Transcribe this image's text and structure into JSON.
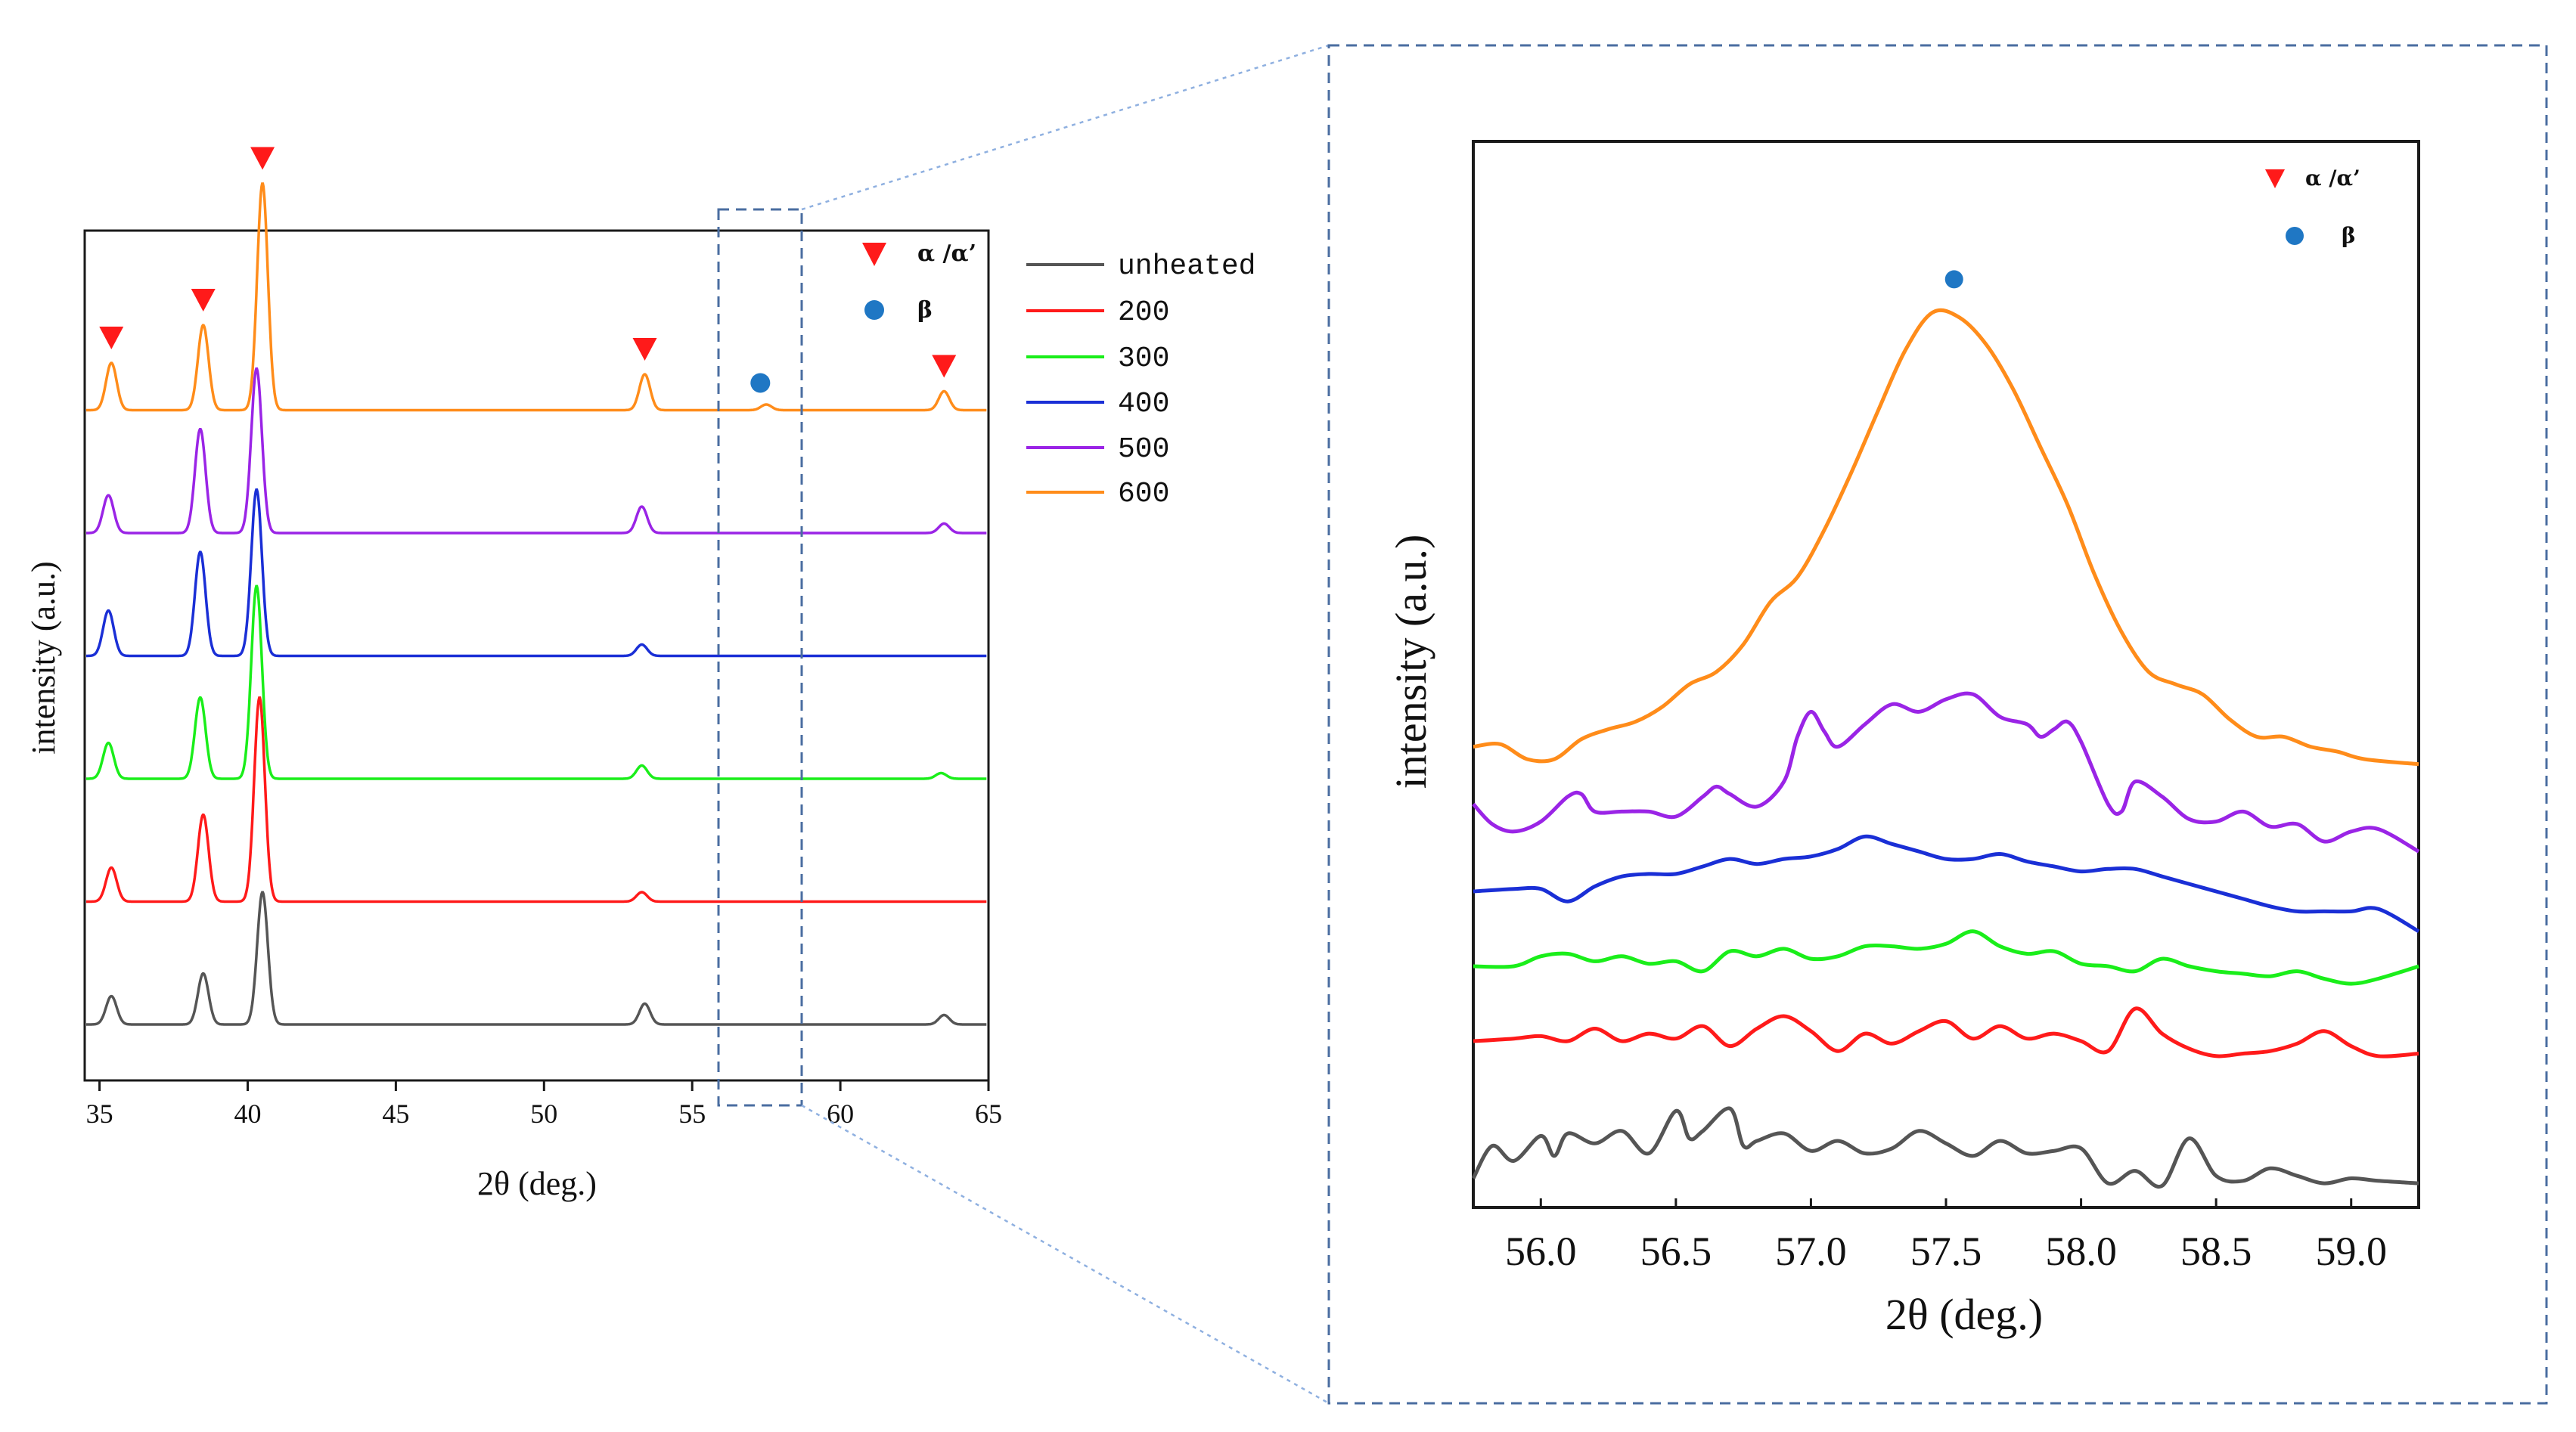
{
  "chart_data": [
    {
      "id": "overview",
      "type": "line",
      "xlabel": "2θ (deg.)",
      "ylabel": "intensity (a.u.)",
      "xlim": [
        34.5,
        65
      ],
      "xticks": [
        35,
        40,
        45,
        50,
        55,
        60,
        65
      ],
      "tick_labels": [
        "35",
        "40",
        "45",
        "50",
        "55",
        "60",
        "65"
      ],
      "stack_offset": 0.65,
      "peak_width": 0.18,
      "series": [
        {
          "name": "unheated",
          "color": "#555555",
          "peaks": [
            [
              35.4,
              0.15
            ],
            [
              38.5,
              0.27
            ],
            [
              40.5,
              0.7
            ],
            [
              53.4,
              0.11
            ],
            [
              63.5,
              0.05
            ]
          ]
        },
        {
          "name": "200",
          "color": "#ff1a1a",
          "peaks": [
            [
              35.4,
              0.18
            ],
            [
              38.5,
              0.46
            ],
            [
              40.4,
              1.08
            ],
            [
              53.3,
              0.05
            ]
          ]
        },
        {
          "name": "300",
          "color": "#1aee1a",
          "peaks": [
            [
              35.3,
              0.19
            ],
            [
              38.4,
              0.43
            ],
            [
              40.3,
              1.02
            ],
            [
              53.3,
              0.07
            ],
            [
              63.4,
              0.03
            ]
          ]
        },
        {
          "name": "400",
          "color": "#1a2fd6",
          "peaks": [
            [
              35.3,
              0.24
            ],
            [
              38.4,
              0.55
            ],
            [
              40.3,
              0.88
            ],
            [
              53.3,
              0.06
            ]
          ]
        },
        {
          "name": "500",
          "color": "#9a24e6",
          "peaks": [
            [
              35.3,
              0.2
            ],
            [
              38.4,
              0.55
            ],
            [
              40.3,
              0.87
            ],
            [
              53.3,
              0.14
            ],
            [
              63.5,
              0.05
            ]
          ]
        },
        {
          "name": "600",
          "color": "#ff8c1a",
          "peaks": [
            [
              35.4,
              0.25
            ],
            [
              38.5,
              0.45
            ],
            [
              40.5,
              1.2
            ],
            [
              53.4,
              0.19
            ],
            [
              57.5,
              0.03
            ],
            [
              63.5,
              0.1
            ]
          ]
        }
      ],
      "markers": [
        {
          "symbol": "triangle",
          "x": 35.4,
          "color": "#ff1a1a"
        },
        {
          "symbol": "triangle",
          "x": 38.5,
          "color": "#ff1a1a"
        },
        {
          "symbol": "triangle",
          "x": 40.5,
          "color": "#ff1a1a"
        },
        {
          "symbol": "triangle",
          "x": 53.4,
          "color": "#ff1a1a"
        },
        {
          "symbol": "circle",
          "x": 57.3,
          "color": "#1f77c4"
        },
        {
          "symbol": "triangle",
          "x": 63.5,
          "color": "#ff1a1a"
        }
      ],
      "zoom_window": [
        56,
        58.5
      ]
    },
    {
      "id": "zoom",
      "type": "line",
      "xlabel": "2θ (deg.)",
      "ylabel": "intensity (a.u.)",
      "xlim": [
        55.75,
        59.25
      ],
      "xticks": [
        56.0,
        56.5,
        57.0,
        57.5,
        58.0,
        58.5,
        59.0
      ],
      "tick_labels": [
        "56.0",
        "56.5",
        "57.0",
        "57.5",
        "58.0",
        "58.5",
        "59.0"
      ],
      "series": [
        {
          "name": "unheated",
          "color": "#555555",
          "x": [
            55.75,
            55.82,
            55.9,
            56.0,
            56.05,
            56.1,
            56.2,
            56.3,
            56.4,
            56.5,
            56.55,
            56.6,
            56.7,
            56.75,
            56.8,
            56.9,
            57.0,
            57.1,
            57.2,
            57.3,
            57.4,
            57.5,
            57.6,
            57.7,
            57.8,
            57.9,
            58.0,
            58.1,
            58.2,
            58.3,
            58.4,
            58.5,
            58.6,
            58.7,
            58.8,
            58.9,
            59.0,
            59.1,
            59.25
          ],
          "y": [
            0.5,
            1.8,
            1.2,
            2.2,
            1.4,
            2.3,
            1.9,
            2.4,
            1.5,
            3.2,
            2.1,
            2.4,
            3.3,
            1.8,
            2.0,
            2.3,
            1.6,
            2.0,
            1.5,
            1.7,
            2.4,
            1.9,
            1.4,
            2.0,
            1.5,
            1.6,
            1.7,
            0.3,
            0.8,
            0.2,
            2.1,
            0.6,
            0.4,
            0.9,
            0.6,
            0.3,
            0.5,
            0.4,
            0.3
          ]
        },
        {
          "name": "200",
          "color": "#ff1a1a",
          "x": [
            55.75,
            55.9,
            56.0,
            56.1,
            56.2,
            56.3,
            56.4,
            56.5,
            56.6,
            56.7,
            56.8,
            56.9,
            57.0,
            57.1,
            57.2,
            57.3,
            57.4,
            57.5,
            57.6,
            57.7,
            57.8,
            57.9,
            58.0,
            58.1,
            58.2,
            58.3,
            58.4,
            58.5,
            58.6,
            58.7,
            58.8,
            58.9,
            59.0,
            59.1,
            59.25
          ],
          "y": [
            6.0,
            6.1,
            6.2,
            6.0,
            6.5,
            6.0,
            6.3,
            6.1,
            6.6,
            5.8,
            6.5,
            7.0,
            6.4,
            5.6,
            6.3,
            5.9,
            6.4,
            6.8,
            6.1,
            6.6,
            6.1,
            6.3,
            6.0,
            5.6,
            7.3,
            6.3,
            5.7,
            5.4,
            5.5,
            5.6,
            5.9,
            6.4,
            5.8,
            5.4,
            5.5
          ]
        },
        {
          "name": "300",
          "color": "#1aee1a",
          "x": [
            55.75,
            55.9,
            56.0,
            56.1,
            56.2,
            56.3,
            56.4,
            56.5,
            56.6,
            56.7,
            56.8,
            56.9,
            57.0,
            57.1,
            57.2,
            57.3,
            57.4,
            57.5,
            57.6,
            57.7,
            57.8,
            57.9,
            58.0,
            58.1,
            58.2,
            58.3,
            58.4,
            58.5,
            58.6,
            58.7,
            58.8,
            58.9,
            59.0,
            59.1,
            59.25
          ],
          "y": [
            9.0,
            9.0,
            9.4,
            9.5,
            9.2,
            9.4,
            9.1,
            9.2,
            8.8,
            9.6,
            9.4,
            9.7,
            9.3,
            9.4,
            9.8,
            9.8,
            9.7,
            9.9,
            10.4,
            9.8,
            9.5,
            9.6,
            9.1,
            9.0,
            8.8,
            9.3,
            9.0,
            8.8,
            8.7,
            8.6,
            8.8,
            8.5,
            8.3,
            8.5,
            9.0
          ]
        },
        {
          "name": "400",
          "color": "#1a2fd6",
          "x": [
            55.75,
            55.9,
            56.0,
            56.1,
            56.2,
            56.3,
            56.4,
            56.5,
            56.6,
            56.7,
            56.8,
            56.9,
            57.0,
            57.1,
            57.2,
            57.3,
            57.4,
            57.5,
            57.6,
            57.7,
            57.8,
            57.9,
            58.0,
            58.1,
            58.2,
            58.3,
            58.4,
            58.5,
            58.6,
            58.7,
            58.8,
            58.9,
            59.0,
            59.1,
            59.25
          ],
          "y": [
            12.0,
            12.1,
            12.1,
            11.6,
            12.2,
            12.6,
            12.7,
            12.7,
            13.0,
            13.3,
            13.1,
            13.3,
            13.4,
            13.7,
            14.2,
            13.9,
            13.6,
            13.3,
            13.3,
            13.5,
            13.2,
            13.0,
            12.8,
            12.9,
            12.9,
            12.6,
            12.3,
            12.0,
            11.7,
            11.4,
            11.2,
            11.2,
            11.2,
            11.3,
            10.4
          ]
        },
        {
          "name": "500",
          "color": "#9a24e6",
          "x": [
            55.75,
            55.82,
            55.9,
            56.0,
            56.1,
            56.15,
            56.2,
            56.3,
            56.4,
            56.5,
            56.6,
            56.65,
            56.7,
            56.8,
            56.9,
            56.95,
            57.0,
            57.05,
            57.1,
            57.2,
            57.3,
            57.4,
            57.5,
            57.6,
            57.7,
            57.8,
            57.85,
            57.9,
            57.95,
            58.0,
            58.1,
            58.15,
            58.2,
            58.3,
            58.4,
            58.5,
            58.6,
            58.7,
            58.8,
            58.9,
            59.0,
            59.1,
            59.25
          ],
          "y": [
            15.5,
            14.7,
            14.4,
            14.8,
            15.8,
            15.9,
            15.2,
            15.2,
            15.2,
            15.0,
            15.8,
            16.2,
            15.9,
            15.4,
            16.4,
            18.2,
            19.2,
            18.4,
            17.8,
            18.7,
            19.5,
            19.2,
            19.7,
            19.9,
            19.0,
            18.7,
            18.2,
            18.5,
            18.8,
            18.0,
            15.5,
            15.2,
            16.4,
            15.8,
            14.9,
            14.8,
            15.2,
            14.6,
            14.7,
            14.0,
            14.4,
            14.5,
            13.6
          ]
        },
        {
          "name": "600",
          "color": "#ff8c1a",
          "x": [
            55.75,
            55.85,
            55.95,
            56.05,
            56.15,
            56.25,
            56.35,
            56.45,
            56.55,
            56.65,
            56.75,
            56.85,
            56.95,
            57.05,
            57.15,
            57.25,
            57.35,
            57.45,
            57.55,
            57.65,
            57.75,
            57.85,
            57.95,
            58.05,
            58.15,
            58.25,
            58.35,
            58.45,
            58.55,
            58.65,
            58.75,
            58.85,
            58.95,
            59.05,
            59.25
          ],
          "y": [
            17.8,
            17.9,
            17.3,
            17.3,
            18.1,
            18.5,
            18.8,
            19.4,
            20.3,
            20.8,
            21.9,
            23.6,
            24.6,
            26.5,
            28.8,
            31.3,
            33.7,
            35.2,
            35.0,
            33.9,
            32.1,
            29.8,
            27.5,
            24.7,
            22.4,
            20.8,
            20.3,
            19.9,
            18.9,
            18.2,
            18.2,
            17.8,
            17.6,
            17.3,
            17.1
          ]
        }
      ],
      "markers": [
        {
          "symbol": "circle",
          "x": 57.53,
          "color": "#1f77c4"
        }
      ]
    }
  ],
  "legend": {
    "items": [
      {
        "label": "unheated",
        "color": "#555555"
      },
      {
        "label": "200",
        "color": "#ff1a1a"
      },
      {
        "label": "300",
        "color": "#1aee1a"
      },
      {
        "label": "400",
        "color": "#1a2fd6"
      },
      {
        "label": "500",
        "color": "#9a24e6"
      },
      {
        "label": "600",
        "color": "#ff8c1a"
      }
    ],
    "phase_keys": [
      {
        "symbol": "triangle",
        "label": "α /α’",
        "color": "#ff1a1a"
      },
      {
        "symbol": "circle",
        "label": "β",
        "color": "#1f77c4"
      }
    ]
  },
  "colors": {
    "frame": "#1a1a1a",
    "zoom_box": "#4a6da0",
    "connector": "#8fb0e0"
  }
}
